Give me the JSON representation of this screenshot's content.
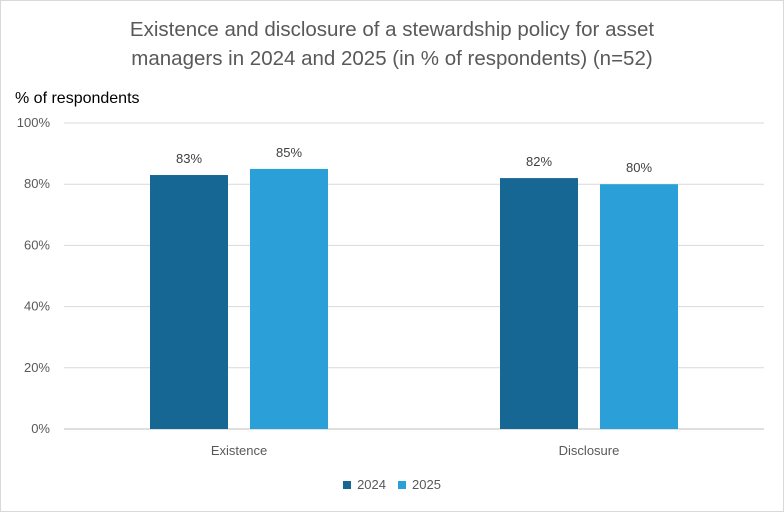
{
  "chart_data": {
    "type": "bar",
    "title": "Existence and disclosure of a stewardship policy for asset\nmanagers in 2024 and 2025 (in % of respondents) (n=52)",
    "ylabel": "% of respondents",
    "xlabel": "",
    "categories": [
      "Existence",
      "Disclosure"
    ],
    "series": [
      {
        "name": "2024",
        "values": [
          83,
          82
        ],
        "color": "#176795"
      },
      {
        "name": "2025",
        "values": [
          85,
          80
        ],
        "color": "#2ba0d8"
      }
    ],
    "data_labels": [
      [
        "83%",
        "82%"
      ],
      [
        "85%",
        "80%"
      ]
    ],
    "ylim": [
      0,
      100
    ],
    "yticks": [
      "0%",
      "20%",
      "40%",
      "60%",
      "80%",
      "100%"
    ],
    "grid": true,
    "legend_position": "bottom"
  }
}
